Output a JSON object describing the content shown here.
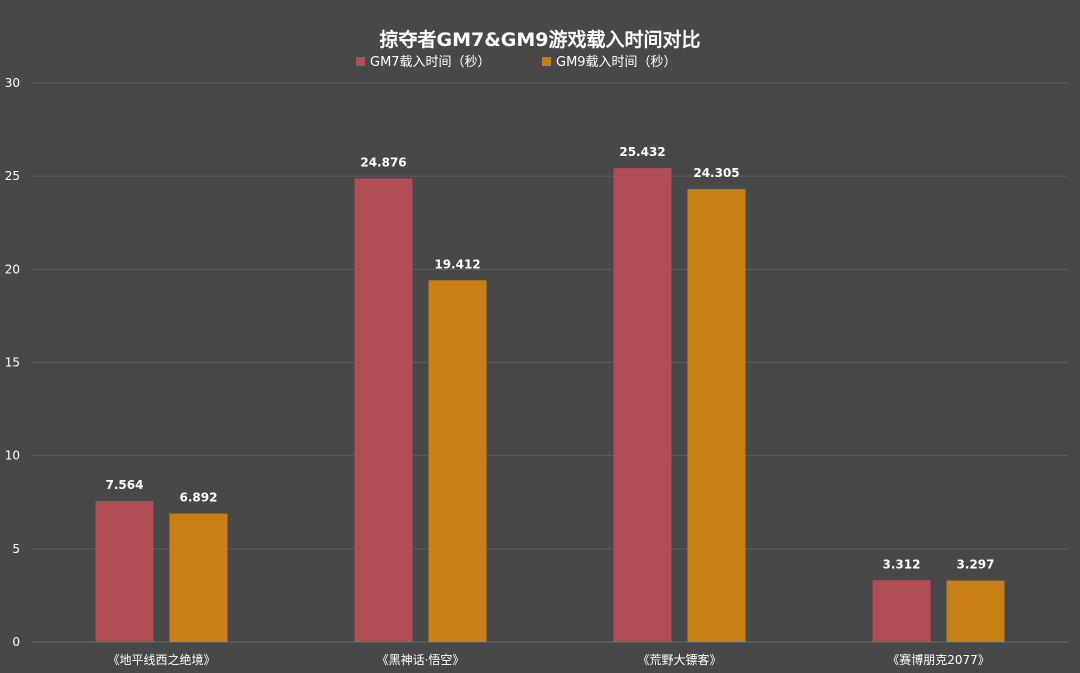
{
  "chart_data": {
    "type": "bar",
    "title": "掠夺者GM7&GM9游戏载入时间对比",
    "xlabel": "",
    "ylabel": "",
    "categories": [
      "《地平线西之绝境》",
      "《黑神话·悟空》",
      "《荒野大镖客》",
      "《赛博朋克2077》"
    ],
    "series": [
      {
        "name": "GM7载入时间（秒）",
        "color": "#b04d55",
        "values": [
          7.564,
          24.876,
          25.432,
          3.312
        ],
        "labels": [
          "7.564",
          "24.876",
          "25.432",
          "3.312"
        ]
      },
      {
        "name": "GM9载入时间（秒）",
        "color": "#c88014",
        "values": [
          6.892,
          19.412,
          24.305,
          3.297
        ],
        "labels": [
          "6.892",
          "19.412",
          "24.305",
          "3.297"
        ]
      }
    ],
    "ylim": [
      0,
      30
    ],
    "yticks": [
      0,
      5,
      10,
      15,
      20,
      25,
      30
    ],
    "grid": true,
    "legend_position": "top-center"
  }
}
